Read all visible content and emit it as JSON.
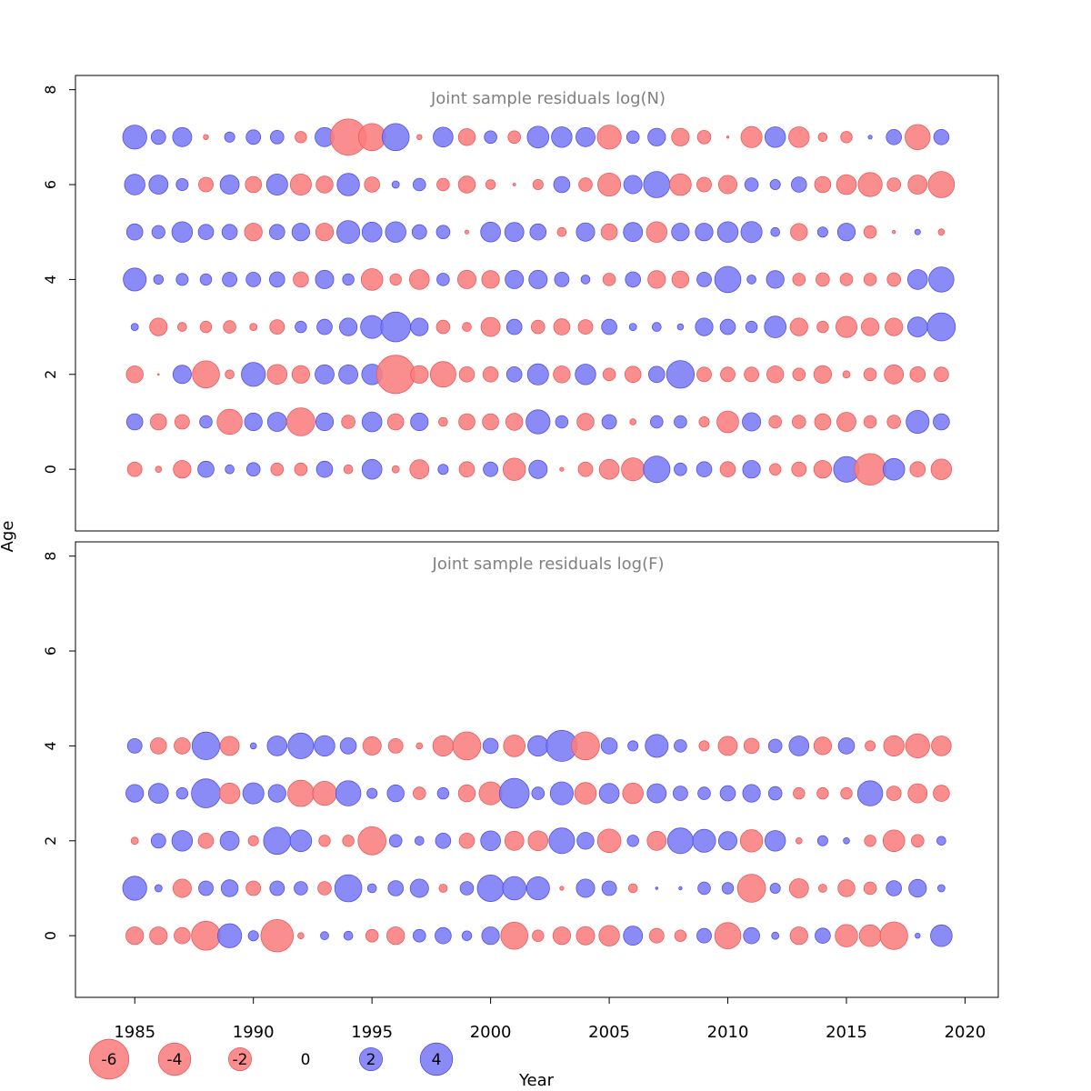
{
  "chart_data": {
    "type": "scatter",
    "subtype": "bubble-residuals",
    "xlabel": "Year",
    "ylabel": "Age",
    "xlim": [
      1982.5,
      2021.4
    ],
    "x_ticks": [
      1985,
      1990,
      1995,
      2000,
      2005,
      2010,
      2015,
      2020
    ],
    "y_ticks": [
      0,
      2,
      4,
      6,
      8
    ],
    "colors": {
      "positive": "#7b7bf6",
      "negative": "#f97e7e",
      "positive_edge": "#5050e6",
      "negative_edge": "#e95a5a"
    },
    "legend": {
      "entries": [
        {
          "label": "-6",
          "value": -6
        },
        {
          "label": "-4",
          "value": -4
        },
        {
          "label": "-2",
          "value": -2
        },
        {
          "label": "0",
          "value": 0
        },
        {
          "label": "2",
          "value": 2
        },
        {
          "label": "4",
          "value": 4
        }
      ]
    },
    "years": [
      1985,
      1986,
      1987,
      1988,
      1989,
      1990,
      1991,
      1992,
      1993,
      1994,
      1995,
      1996,
      1997,
      1998,
      1999,
      2000,
      2001,
      2002,
      2003,
      2004,
      2005,
      2006,
      2007,
      2008,
      2009,
      2010,
      2011,
      2012,
      2013,
      2014,
      2015,
      2016,
      2017,
      2018,
      2019
    ],
    "panels": [
      {
        "title": "Joint sample residuals log(N)",
        "ylim": [
          -1.3,
          8.3
        ],
        "ages": [
          0,
          1,
          2,
          3,
          4,
          5,
          6,
          7
        ],
        "residuals": {
          "0": [
            -0.8,
            -0.15,
            -1.2,
            1.0,
            0.3,
            0.7,
            -0.6,
            -0.6,
            1.0,
            -0.3,
            1.5,
            -0.2,
            -1.4,
            0.4,
            -0.9,
            0.8,
            -1.9,
            1.3,
            -0.06,
            -0.8,
            -1.5,
            -2.0,
            2.7,
            0.6,
            0.9,
            -0.9,
            1.2,
            -0.5,
            -0.8,
            -1.2,
            2.5,
            -3.8,
            1.8,
            -0.9,
            -1.6
          ],
          "1": [
            1.0,
            -1.0,
            -0.8,
            0.6,
            -2.4,
            1.2,
            1.4,
            -3.0,
            1.2,
            -0.7,
            1.5,
            -1.0,
            1.2,
            -0.3,
            -1.0,
            -1.0,
            -1.1,
            2.2,
            0.6,
            -1.1,
            0.8,
            -0.15,
            0.6,
            0.6,
            -0.4,
            -1.8,
            1.3,
            -0.6,
            -0.7,
            -1.0,
            -1.4,
            -0.6,
            -0.7,
            2.0,
            1.0
          ],
          "2": [
            -1.1,
            -0.01,
            1.3,
            -2.8,
            -0.3,
            2.2,
            -1.5,
            -1.2,
            1.4,
            1.4,
            1.6,
            -5.6,
            -1.2,
            -2.5,
            -0.9,
            -0.9,
            0.9,
            1.7,
            -1.1,
            1.6,
            -0.6,
            -1.0,
            1.0,
            2.9,
            -0.8,
            -0.8,
            -0.8,
            -1.1,
            -0.6,
            -1.2,
            -0.2,
            -0.6,
            -1.4,
            -0.9,
            -0.8
          ],
          "3": [
            0.2,
            -1.2,
            -0.3,
            -0.5,
            -0.6,
            -0.2,
            -0.8,
            0.5,
            0.9,
            1.2,
            2.0,
            3.4,
            1.2,
            -0.7,
            -0.3,
            -1.4,
            0.9,
            -0.7,
            -1.0,
            -0.8,
            0.9,
            0.2,
            0.3,
            0.15,
            1.2,
            0.9,
            0.5,
            1.8,
            -1.2,
            -0.5,
            -1.7,
            -1.2,
            -1.2,
            1.5,
            3.0
          ],
          "4": [
            2.0,
            0.35,
            0.55,
            0.5,
            0.8,
            0.8,
            0.9,
            -0.9,
            1.3,
            0.5,
            -1.8,
            -0.5,
            -1.5,
            0.6,
            -1.3,
            -1.2,
            1.3,
            1.3,
            0.8,
            0.3,
            -0.6,
            0.9,
            -1.2,
            -1.1,
            0.8,
            2.6,
            0.3,
            1.2,
            -0.6,
            -0.7,
            -0.6,
            -0.6,
            -0.7,
            1.5,
            2.4
          ],
          "5": [
            1.0,
            0.65,
            1.6,
            0.9,
            0.9,
            -1.2,
            0.9,
            1.2,
            -1.2,
            2.0,
            1.5,
            1.6,
            0.8,
            0.7,
            -0.06,
            1.5,
            1.4,
            1.0,
            -0.3,
            1.3,
            -1.0,
            1.4,
            -1.6,
            1.2,
            1.2,
            1.6,
            1.7,
            0.3,
            -1.1,
            0.4,
            1.2,
            -0.6,
            -0.04,
            0.12,
            -0.15
          ],
          "6": [
            1.6,
            1.4,
            0.55,
            -0.8,
            1.4,
            -1.0,
            1.7,
            -1.7,
            -1.1,
            1.9,
            -0.9,
            0.2,
            0.6,
            -0.6,
            -1.1,
            -0.35,
            -0.03,
            -0.4,
            1.0,
            -0.7,
            -2.0,
            1.3,
            2.6,
            -1.8,
            -0.8,
            -1.3,
            0.7,
            0.4,
            0.9,
            -1.0,
            -1.5,
            -2.2,
            -0.7,
            -1.4,
            -2.6
          ],
          "7": [
            2.2,
            0.8,
            1.4,
            -0.1,
            0.4,
            0.8,
            0.7,
            -0.5,
            1.4,
            -5.0,
            -2.8,
            2.8,
            -0.1,
            1.5,
            -1.1,
            0.6,
            -0.6,
            1.8,
            1.6,
            1.4,
            -2.2,
            0.6,
            1.2,
            -1.2,
            -0.7,
            -0.02,
            -1.7,
            1.6,
            -1.6,
            -0.3,
            -0.5,
            0.06,
            0.9,
            -2.4,
            0.9
          ]
        }
      },
      {
        "title": "Joint sample residuals log(F)",
        "ylim": [
          -1.3,
          8.3
        ],
        "ages": [
          0,
          1,
          2,
          3,
          4
        ],
        "residuals": {
          "0": [
            -1.2,
            -1.2,
            -1.0,
            -3.2,
            2.2,
            0.4,
            -4.0,
            -0.15,
            0.25,
            0.3,
            -0.6,
            -1.2,
            0.6,
            1.0,
            0.35,
            1.2,
            -2.8,
            -0.5,
            -1.2,
            -1.3,
            -1.6,
            1.4,
            -0.8,
            -0.5,
            0.8,
            -2.6,
            1.0,
            0.2,
            -1.2,
            0.9,
            -1.9,
            -1.8,
            -2.9,
            0.1,
            1.8
          ],
          "1": [
            2.2,
            0.2,
            -1.3,
            0.8,
            1.1,
            -0.8,
            0.8,
            0.7,
            -0.7,
            2.8,
            0.3,
            0.9,
            1.3,
            -0.25,
            0.7,
            2.7,
            2.1,
            2.0,
            -0.06,
            1.3,
            0.8,
            -0.3,
            0.02,
            0.04,
            0.6,
            0.5,
            -3.0,
            0.4,
            -1.4,
            -0.25,
            -1.1,
            -0.6,
            0.9,
            1.2,
            0.2
          ],
          "2": [
            -0.2,
            0.8,
            1.6,
            -0.9,
            1.4,
            -0.4,
            2.8,
            1.8,
            -0.5,
            -0.5,
            -3.0,
            0.6,
            0.3,
            0.9,
            -0.9,
            1.5,
            -1.4,
            -1.5,
            2.5,
            1.1,
            -2.1,
            0.5,
            -1.4,
            2.5,
            2.0,
            1.3,
            -1.9,
            1.6,
            -0.15,
            0.4,
            0.15,
            -0.5,
            -1.8,
            -0.6,
            0.3
          ],
          "3": [
            1.2,
            1.5,
            0.5,
            3.2,
            -1.6,
            1.7,
            1.2,
            -2.6,
            -2.2,
            2.4,
            0.4,
            1.1,
            -0.6,
            0.5,
            -1.1,
            -2.0,
            3.4,
            0.6,
            2.0,
            -1.8,
            1.5,
            -1.6,
            1.4,
            0.8,
            0.6,
            0.9,
            1.2,
            0.7,
            -0.5,
            -0.5,
            -0.5,
            2.4,
            -0.8,
            -1.4,
            -1.0
          ],
          "4": [
            0.8,
            -1.0,
            -1.0,
            2.9,
            -1.4,
            0.15,
            1.5,
            2.5,
            1.6,
            1.0,
            -1.3,
            -0.8,
            -0.15,
            -1.6,
            -3.0,
            0.9,
            -1.8,
            1.6,
            3.7,
            -3.0,
            1.0,
            0.4,
            2.0,
            0.6,
            -0.4,
            -1.4,
            -0.9,
            0.7,
            1.5,
            -1.2,
            1.0,
            -0.4,
            -1.6,
            -2.2,
            -1.5
          ]
        }
      }
    ]
  }
}
